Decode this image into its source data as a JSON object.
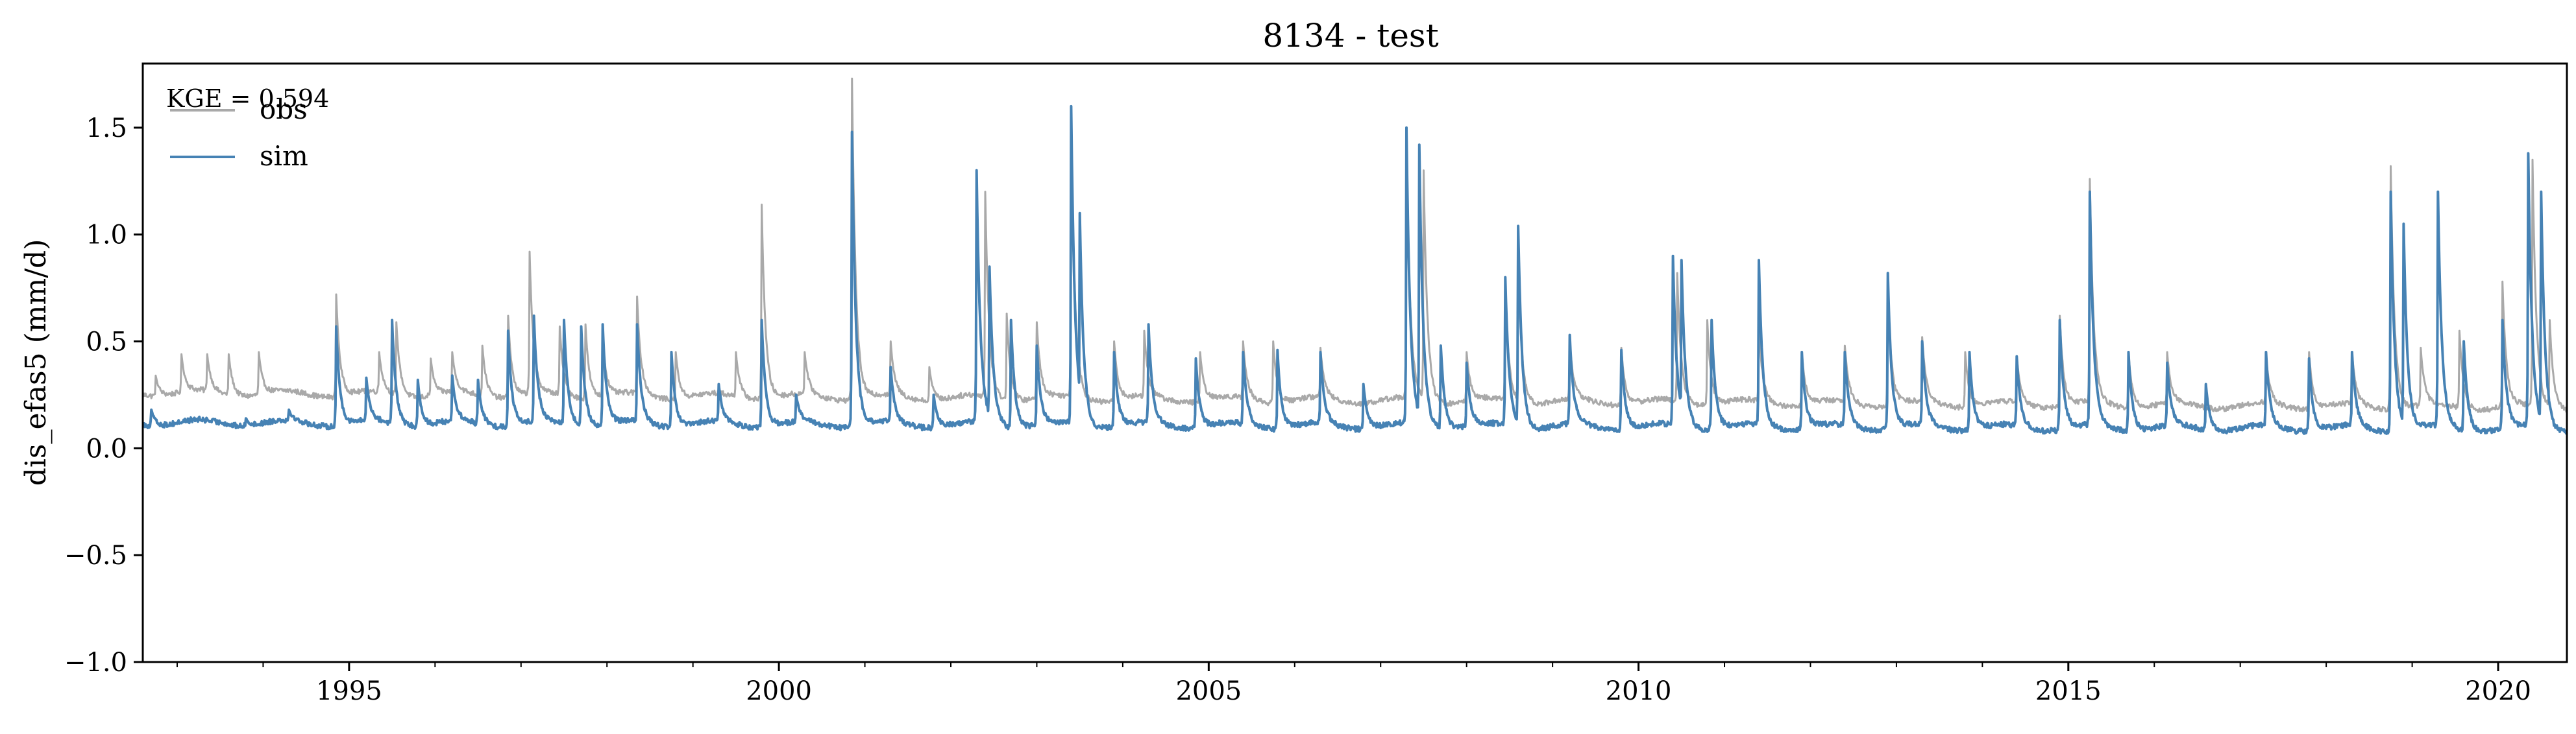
{
  "chart_data": {
    "type": "line",
    "title": "8134 - test",
    "ylabel": "dis_efas5 (mm/d)",
    "xlabel": "",
    "xlim": [
      1992.6,
      2020.8
    ],
    "ylim": [
      -1.0,
      1.8
    ],
    "yticks": [
      -1.0,
      -0.5,
      0.0,
      0.5,
      1.0,
      1.5
    ],
    "ytick_labels": [
      "−1.0",
      "−0.5",
      "0.0",
      "0.5",
      "1.0",
      "1.5"
    ],
    "xticks": [
      1995,
      2000,
      2005,
      2010,
      2015,
      2020
    ],
    "xtick_labels": [
      "1995",
      "2000",
      "2005",
      "2010",
      "2015",
      "2020"
    ],
    "annotation": "KGE = 0.594",
    "legend": {
      "position": "top-left"
    },
    "series": [
      {
        "name": "obs",
        "color": "#a9a9a9",
        "baseline_start": 0.26,
        "baseline_end": 0.19,
        "peaks": [
          [
            1992.75,
            0.34
          ],
          [
            1993.05,
            0.44
          ],
          [
            1993.35,
            0.44
          ],
          [
            1993.6,
            0.44
          ],
          [
            1993.95,
            0.45
          ],
          [
            1994.85,
            0.72
          ],
          [
            1995.35,
            0.45
          ],
          [
            1995.55,
            0.59
          ],
          [
            1995.95,
            0.42
          ],
          [
            1996.2,
            0.45
          ],
          [
            1996.55,
            0.48
          ],
          [
            1996.85,
            0.62
          ],
          [
            1997.1,
            0.92
          ],
          [
            1997.45,
            0.57
          ],
          [
            1997.75,
            0.58
          ],
          [
            1997.95,
            0.52
          ],
          [
            1998.35,
            0.71
          ],
          [
            1998.8,
            0.45
          ],
          [
            1999.5,
            0.45
          ],
          [
            1999.8,
            1.14
          ],
          [
            2000.3,
            0.45
          ],
          [
            2000.85,
            1.73
          ],
          [
            2001.3,
            0.5
          ],
          [
            2001.75,
            0.38
          ],
          [
            2002.4,
            1.2
          ],
          [
            2002.65,
            0.63
          ],
          [
            2003.0,
            0.59
          ],
          [
            2003.4,
            1.52
          ],
          [
            2003.9,
            0.5
          ],
          [
            2004.25,
            0.55
          ],
          [
            2004.9,
            0.45
          ],
          [
            2005.4,
            0.5
          ],
          [
            2005.75,
            0.5
          ],
          [
            2006.3,
            0.47
          ],
          [
            2007.3,
            1.4
          ],
          [
            2007.5,
            1.3
          ],
          [
            2008.0,
            0.45
          ],
          [
            2008.45,
            0.72
          ],
          [
            2008.6,
            0.85
          ],
          [
            2009.2,
            0.5
          ],
          [
            2009.8,
            0.47
          ],
          [
            2010.45,
            0.82
          ],
          [
            2010.8,
            0.6
          ],
          [
            2011.4,
            0.57
          ],
          [
            2011.9,
            0.45
          ],
          [
            2012.4,
            0.48
          ],
          [
            2012.9,
            0.75
          ],
          [
            2013.3,
            0.52
          ],
          [
            2013.8,
            0.45
          ],
          [
            2014.4,
            0.43
          ],
          [
            2014.9,
            0.62
          ],
          [
            2015.25,
            1.26
          ],
          [
            2015.7,
            0.45
          ],
          [
            2016.15,
            0.45
          ],
          [
            2017.3,
            0.43
          ],
          [
            2017.8,
            0.45
          ],
          [
            2018.3,
            0.45
          ],
          [
            2018.75,
            1.32
          ],
          [
            2019.1,
            0.47
          ],
          [
            2019.55,
            0.55
          ],
          [
            2020.05,
            0.78
          ],
          [
            2020.4,
            1.35
          ],
          [
            2020.6,
            0.6
          ]
        ]
      },
      {
        "name": "sim",
        "color": "#4682b4",
        "baseline_start": 0.12,
        "baseline_end": 0.09,
        "peaks": [
          [
            1992.7,
            0.18
          ],
          [
            1993.1,
            0.1
          ],
          [
            1993.5,
            0.12
          ],
          [
            1993.8,
            0.14
          ],
          [
            1994.3,
            0.18
          ],
          [
            1994.85,
            0.57
          ],
          [
            1995.2,
            0.33
          ],
          [
            1995.5,
            0.6
          ],
          [
            1995.8,
            0.32
          ],
          [
            1996.2,
            0.34
          ],
          [
            1996.5,
            0.32
          ],
          [
            1996.85,
            0.55
          ],
          [
            1997.15,
            0.62
          ],
          [
            1997.5,
            0.6
          ],
          [
            1997.7,
            0.57
          ],
          [
            1997.95,
            0.58
          ],
          [
            1998.35,
            0.58
          ],
          [
            1998.75,
            0.45
          ],
          [
            1999.3,
            0.3
          ],
          [
            1999.8,
            0.6
          ],
          [
            2000.2,
            0.25
          ],
          [
            2000.85,
            1.48
          ],
          [
            2001.3,
            0.38
          ],
          [
            2001.8,
            0.25
          ],
          [
            2002.3,
            1.3
          ],
          [
            2002.45,
            0.85
          ],
          [
            2002.7,
            0.6
          ],
          [
            2003.0,
            0.48
          ],
          [
            2003.4,
            1.6
          ],
          [
            2003.5,
            1.1
          ],
          [
            2003.9,
            0.45
          ],
          [
            2004.3,
            0.58
          ],
          [
            2004.85,
            0.42
          ],
          [
            2005.4,
            0.45
          ],
          [
            2005.8,
            0.46
          ],
          [
            2006.3,
            0.45
          ],
          [
            2006.8,
            0.3
          ],
          [
            2007.3,
            1.5
          ],
          [
            2007.45,
            1.42
          ],
          [
            2007.7,
            0.48
          ],
          [
            2008.0,
            0.4
          ],
          [
            2008.45,
            0.8
          ],
          [
            2008.6,
            1.04
          ],
          [
            2009.2,
            0.53
          ],
          [
            2009.8,
            0.46
          ],
          [
            2010.4,
            0.9
          ],
          [
            2010.5,
            0.88
          ],
          [
            2010.85,
            0.6
          ],
          [
            2011.4,
            0.88
          ],
          [
            2011.9,
            0.45
          ],
          [
            2012.4,
            0.45
          ],
          [
            2012.9,
            0.82
          ],
          [
            2013.3,
            0.5
          ],
          [
            2013.85,
            0.45
          ],
          [
            2014.4,
            0.43
          ],
          [
            2014.9,
            0.6
          ],
          [
            2015.25,
            1.2
          ],
          [
            2015.7,
            0.45
          ],
          [
            2016.15,
            0.4
          ],
          [
            2016.6,
            0.3
          ],
          [
            2017.3,
            0.45
          ],
          [
            2017.8,
            0.42
          ],
          [
            2018.3,
            0.45
          ],
          [
            2018.75,
            1.2
          ],
          [
            2018.9,
            1.05
          ],
          [
            2019.3,
            1.2
          ],
          [
            2019.6,
            0.5
          ],
          [
            2020.05,
            0.6
          ],
          [
            2020.35,
            1.38
          ],
          [
            2020.5,
            1.2
          ]
        ]
      }
    ]
  }
}
